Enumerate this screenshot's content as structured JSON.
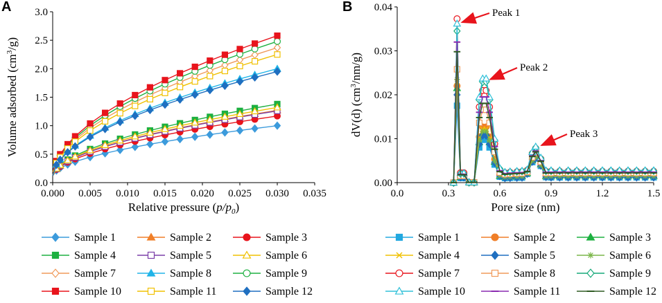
{
  "chart_data": [
    {
      "panel": "A",
      "type": "line",
      "title": "",
      "xlabel": "Relative pressure (p/p0)",
      "xlabel_parts": [
        "Relative pressure (",
        "p/p",
        "0",
        ")"
      ],
      "ylabel": "Volume adsorbed (cm3/g)",
      "ylabel_parts": [
        "Volume adsorbed (cm",
        "3",
        "/g)"
      ],
      "xlim": [
        0,
        0.035
      ],
      "ylim": [
        0,
        3.0
      ],
      "x_ticks": [
        "0.000",
        "0.005",
        "0.010",
        "0.015",
        "0.020",
        "0.025",
        "0.030",
        "0.035"
      ],
      "y_ticks": [
        "0.0",
        "0.5",
        "1.0",
        "1.5",
        "2.0",
        "2.5",
        "3.0"
      ],
      "x": [
        0.0005,
        0.001,
        0.002,
        0.003,
        0.005,
        0.007,
        0.009,
        0.011,
        0.013,
        0.015,
        0.017,
        0.019,
        0.021,
        0.023,
        0.025,
        0.027,
        0.03
      ],
      "series_final": [
        {
          "name": "Sample 1",
          "color": "#3c9bdc",
          "marker": "diamond",
          "fill": true,
          "final": 1.0
        },
        {
          "name": "Sample 2",
          "color": "#f07f28",
          "marker": "triangle",
          "fill": true,
          "final": 1.27
        },
        {
          "name": "Sample 3",
          "color": "#e8141c",
          "marker": "circle",
          "fill": true,
          "final": 1.17
        },
        {
          "name": "Sample 4",
          "color": "#1db040",
          "marker": "square",
          "fill": true,
          "final": 1.38
        },
        {
          "name": "Sample 5",
          "color": "#7a3ea8",
          "marker": "square",
          "fill": false,
          "final": 1.26
        },
        {
          "name": "Sample 6",
          "color": "#f0c000",
          "marker": "triangle",
          "fill": false,
          "final": 1.32
        },
        {
          "name": "Sample 7",
          "color": "#f09a5a",
          "marker": "diamond",
          "fill": false,
          "final": 2.37
        },
        {
          "name": "Sample 8",
          "color": "#20b4e8",
          "marker": "triangle",
          "fill": true,
          "final": 2.0
        },
        {
          "name": "Sample 9",
          "color": "#1db040",
          "marker": "circle",
          "fill": false,
          "final": 2.48
        },
        {
          "name": "Sample 10",
          "color": "#e8141c",
          "marker": "square",
          "fill": true,
          "final": 2.58
        },
        {
          "name": "Sample 11",
          "color": "#f0c000",
          "marker": "square",
          "fill": false,
          "final": 2.25
        },
        {
          "name": "Sample 12",
          "color": "#1f6fc0",
          "marker": "diamond",
          "fill": true,
          "final": 1.95
        }
      ],
      "legend_rows": [
        [
          "Sample 1",
          "Sample 2",
          "Sample 3"
        ],
        [
          "Sample 4",
          "Sample 5",
          "Sample 6"
        ],
        [
          "Sample 7",
          "Sample 8",
          "Sample 9"
        ],
        [
          "Sample 10",
          "Sample 11",
          "Sample 12"
        ]
      ]
    },
    {
      "panel": "B",
      "type": "line",
      "title": "",
      "xlabel": "Pore size (nm)",
      "ylabel": "dV(d) (cm3/nm/g)",
      "ylabel_parts": [
        "dV(d) (cm",
        "3",
        "/nm/g)"
      ],
      "xlim": [
        0,
        1.5
      ],
      "ylim": [
        0,
        0.04
      ],
      "x_ticks": [
        "0.0",
        "0.3",
        "0.6",
        "0.9",
        "1.2",
        "1.5"
      ],
      "y_ticks": [
        "0.00",
        "0.01",
        "0.02",
        "0.03",
        "0.04"
      ],
      "x": [
        0.33,
        0.35,
        0.37,
        0.39,
        0.42,
        0.45,
        0.48,
        0.5,
        0.52,
        0.54,
        0.57,
        0.6,
        0.63,
        0.66,
        0.7,
        0.73,
        0.76,
        0.79,
        0.81,
        0.84,
        0.87,
        0.9,
        0.95,
        1.0,
        1.05,
        1.1,
        1.15,
        1.2,
        1.25,
        1.3,
        1.35,
        1.4,
        1.45,
        1.5
      ],
      "peak_labels": [
        {
          "text": "Peak 1",
          "x": 0.355,
          "y": 0.0365
        },
        {
          "text": "Peak 2",
          "x": 0.52,
          "y": 0.0235
        },
        {
          "text": "Peak 3",
          "x": 0.82,
          "y": 0.0085
        }
      ],
      "series": [
        {
          "name": "Sample 1",
          "color": "#22a8e0",
          "marker": "square",
          "fill": true,
          "p1": 0.0175,
          "p2": 0.01,
          "p3": 0.0055,
          "tail": 0.0012
        },
        {
          "name": "Sample 2",
          "color": "#f07f28",
          "marker": "circle",
          "fill": true,
          "p1": 0.022,
          "p2": 0.013,
          "p3": 0.0062,
          "tail": 0.0016
        },
        {
          "name": "Sample 3",
          "color": "#1db040",
          "marker": "triangle",
          "fill": true,
          "p1": 0.0215,
          "p2": 0.0115,
          "p3": 0.006,
          "tail": 0.0015
        },
        {
          "name": "Sample 4",
          "color": "#f0c000",
          "marker": "x",
          "fill": true,
          "p1": 0.023,
          "p2": 0.0125,
          "p3": 0.0058,
          "tail": 0.0014
        },
        {
          "name": "Sample 5",
          "color": "#1f6fc0",
          "marker": "diamond",
          "fill": true,
          "p1": 0.02,
          "p2": 0.011,
          "p3": 0.0056,
          "tail": 0.0012
        },
        {
          "name": "Sample 6",
          "color": "#7ab648",
          "marker": "star",
          "fill": true,
          "p1": 0.0235,
          "p2": 0.012,
          "p3": 0.0059,
          "tail": 0.0015
        },
        {
          "name": "Sample 7",
          "color": "#e8141c",
          "marker": "circle",
          "fill": false,
          "p1": 0.0373,
          "p2": 0.0215,
          "p3": 0.0078,
          "tail": 0.0026
        },
        {
          "name": "Sample 8",
          "color": "#f09a5a",
          "marker": "square",
          "fill": false,
          "p1": 0.0258,
          "p2": 0.017,
          "p3": 0.0068,
          "tail": 0.0022
        },
        {
          "name": "Sample 9",
          "color": "#15a878",
          "marker": "diamond",
          "fill": false,
          "p1": 0.0345,
          "p2": 0.0235,
          "p3": 0.008,
          "tail": 0.0027
        },
        {
          "name": "Sample 10",
          "color": "#30c0d8",
          "marker": "triangle",
          "fill": false,
          "p1": 0.0362,
          "p2": 0.0243,
          "p3": 0.0082,
          "tail": 0.0028
        },
        {
          "name": "Sample 11",
          "color": "#8a2ab0",
          "marker": "dash",
          "fill": true,
          "p1": 0.032,
          "p2": 0.02,
          "p3": 0.0072,
          "tail": 0.0024
        },
        {
          "name": "Sample 12",
          "color": "#2e5a22",
          "marker": "dash",
          "fill": true,
          "p1": 0.0298,
          "p2": 0.0185,
          "p3": 0.007,
          "tail": 0.0022
        }
      ],
      "legend_rows": [
        [
          "Sample 1",
          "Sample 2",
          "Sample 3"
        ],
        [
          "Sample 4",
          "Sample 5",
          "Sample 6"
        ],
        [
          "Sample 7",
          "Sample 8",
          "Sample 9"
        ],
        [
          "Sample 10",
          "Sample 11",
          "Sample 12"
        ]
      ]
    }
  ]
}
